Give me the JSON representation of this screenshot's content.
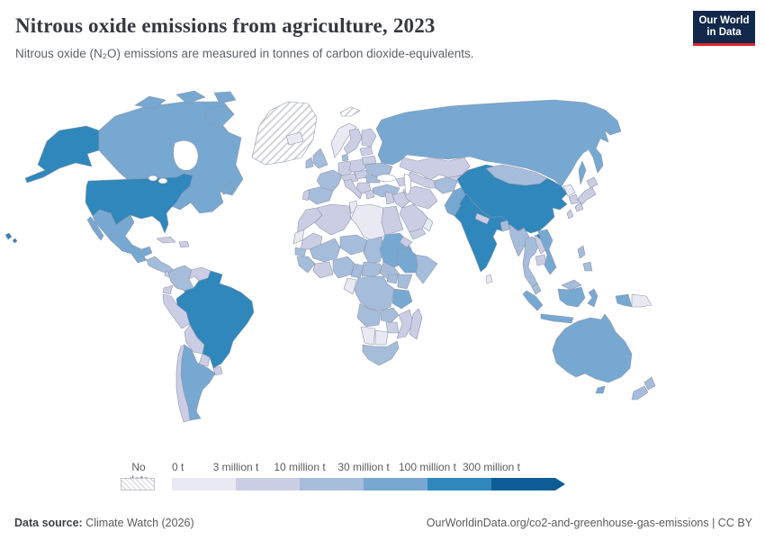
{
  "header": {
    "title": "Nitrous oxide emissions from agriculture, 2023",
    "subtitle": "Nitrous oxide (N₂O) emissions are measured in tonnes of carbon dioxide-equivalents.",
    "logo_line1": "Our World",
    "logo_line2": "in Data",
    "logo_bg": "#12294b",
    "logo_accent": "#e5252d"
  },
  "legend": {
    "no_data_label": "No data",
    "tick_labels": [
      "0 t",
      "3 million t",
      "10 million t",
      "30 million t",
      "100 million t",
      "300 million t"
    ],
    "colors": [
      "#e9e9f3",
      "#cbcde4",
      "#a6bcdb",
      "#77a8d1",
      "#2f87bc",
      "#0d5c95"
    ],
    "hatch_line_color": "#cfcfd8",
    "swatch_border": "#c2c2cc"
  },
  "map": {
    "ocean": "#ffffff",
    "border_color": "#8d97ab",
    "no_data": [
      "greenland",
      "svalbard"
    ]
  },
  "footer": {
    "source_label": "Data source:",
    "source_text": "Climate Watch (2026)",
    "right_text": "OurWorldinData.org/co2-and-greenhouse-gas-emissions | CC BY"
  },
  "chart_data": {
    "type": "choropleth_map",
    "title": "Nitrous oxide emissions from agriculture, 2023",
    "unit": "tonnes of carbon dioxide-equivalents",
    "year": "2023",
    "legend_thresholds": [
      "0 t",
      "3 million t",
      "10 million t",
      "30 million t",
      "100 million t",
      "300 million t"
    ],
    "bin_ranges": [
      "0–3 million t",
      "3–10 million t",
      "10–30 million t",
      "30–100 million t",
      "100–300 million t",
      "over 300 million t"
    ],
    "no_data_regions": [
      "Greenland",
      "Svalbard"
    ],
    "countries": {
      "usa": {
        "name": "United States",
        "bin": 5
      },
      "canada": {
        "name": "Canada",
        "bin": 4
      },
      "mexico": {
        "name": "Mexico",
        "bin": 4
      },
      "central_america": {
        "name": "Guatemala/Honduras/Nicaragua",
        "bin": 3
      },
      "panama_cr": {
        "name": "Costa Rica/Panama",
        "bin": 2
      },
      "cuba": {
        "name": "Cuba",
        "bin": 2
      },
      "hispaniola": {
        "name": "Haiti/Dominican Republic",
        "bin": 2
      },
      "iceland": {
        "name": "Iceland",
        "bin": 1
      },
      "colombia": {
        "name": "Colombia",
        "bin": 3
      },
      "venezuela": {
        "name": "Venezuela",
        "bin": 2
      },
      "guyanas": {
        "name": "Guyana/Suriname",
        "bin": 1
      },
      "ecuador": {
        "name": "Ecuador",
        "bin": 2
      },
      "peru": {
        "name": "Peru",
        "bin": 2
      },
      "brazil": {
        "name": "Brazil",
        "bin": 5
      },
      "bolivia": {
        "name": "Bolivia",
        "bin": 2
      },
      "paraguay": {
        "name": "Paraguay",
        "bin": 2
      },
      "uruguay": {
        "name": "Uruguay",
        "bin": 2
      },
      "argentina": {
        "name": "Argentina",
        "bin": 4
      },
      "chile": {
        "name": "Chile",
        "bin": 2
      },
      "norway": {
        "name": "Norway",
        "bin": 1
      },
      "sweden": {
        "name": "Sweden",
        "bin": 2
      },
      "finland": {
        "name": "Finland",
        "bin": 2
      },
      "denmark": {
        "name": "Denmark",
        "bin": 3
      },
      "uk": {
        "name": "United Kingdom",
        "bin": 3
      },
      "ireland": {
        "name": "Ireland",
        "bin": 3
      },
      "france": {
        "name": "France",
        "bin": 3
      },
      "spain": {
        "name": "Spain",
        "bin": 3
      },
      "portugal": {
        "name": "Portugal",
        "bin": 2
      },
      "germany": {
        "name": "Germany",
        "bin": 2
      },
      "alpine": {
        "name": "Switzerland/Austria",
        "bin": 2
      },
      "italy": {
        "name": "Italy",
        "bin": 2
      },
      "poland": {
        "name": "Poland",
        "bin": 2
      },
      "czech_hungary": {
        "name": "Czechia/Slovakia/Hungary",
        "bin": 2
      },
      "balkans": {
        "name": "Balkans",
        "bin": 2
      },
      "romania": {
        "name": "Romania",
        "bin": 3
      },
      "greece": {
        "name": "Greece",
        "bin": 2
      },
      "baltics": {
        "name": "Baltic states",
        "bin": 2
      },
      "belarus": {
        "name": "Belarus",
        "bin": 2
      },
      "ukraine": {
        "name": "Ukraine",
        "bin": 3
      },
      "russia": {
        "name": "Russia",
        "bin": 4
      },
      "turkey": {
        "name": "Turkey",
        "bin": 3
      },
      "caucasus": {
        "name": "Caucasus",
        "bin": 2
      },
      "levant": {
        "name": "Syria/Levant",
        "bin": 2
      },
      "iraq": {
        "name": "Iraq",
        "bin": 2
      },
      "iran": {
        "name": "Iran",
        "bin": 2
      },
      "saudi": {
        "name": "Saudi Arabia",
        "bin": 2
      },
      "yemen": {
        "name": "Yemen",
        "bin": 2
      },
      "oman": {
        "name": "Oman",
        "bin": 1
      },
      "kazakhstan": {
        "name": "Kazakhstan",
        "bin": 2
      },
      "uzbek_turkmen": {
        "name": "Uzbekistan/Turkmenistan",
        "bin": 2
      },
      "kyrgyz_tajik": {
        "name": "Kyrgyzstan/Tajikistan",
        "bin": 2
      },
      "afghanistan": {
        "name": "Afghanistan",
        "bin": 3
      },
      "pakistan": {
        "name": "Pakistan",
        "bin": 4
      },
      "india": {
        "name": "India",
        "bin": 5
      },
      "nepal": {
        "name": "Nepal",
        "bin": 2
      },
      "bangladesh": {
        "name": "Bangladesh",
        "bin": 3
      },
      "srilanka": {
        "name": "Sri Lanka",
        "bin": 1
      },
      "myanmar": {
        "name": "Myanmar",
        "bin": 3
      },
      "thailand": {
        "name": "Thailand",
        "bin": 3
      },
      "laos": {
        "name": "Laos",
        "bin": 2
      },
      "cambodia": {
        "name": "Cambodia",
        "bin": 2
      },
      "vietnam": {
        "name": "Vietnam",
        "bin": 4
      },
      "malaysia": {
        "name": "Malaysia",
        "bin": 3
      },
      "indonesia": {
        "name": "Indonesia",
        "bin": 4
      },
      "png": {
        "name": "Papua New Guinea",
        "bin": 1
      },
      "philippines": {
        "name": "Philippines",
        "bin": 3
      },
      "china": {
        "name": "China",
        "bin": 5
      },
      "mongolia": {
        "name": "Mongolia",
        "bin": 3
      },
      "nkorea": {
        "name": "North Korea",
        "bin": 1
      },
      "skorea": {
        "name": "South Korea",
        "bin": 2
      },
      "japan": {
        "name": "Japan",
        "bin": 2
      },
      "taiwan": {
        "name": "Taiwan",
        "bin": 2
      },
      "morocco": {
        "name": "Morocco",
        "bin": 2
      },
      "wsahara": {
        "name": "Western Sahara",
        "bin": 1
      },
      "algeria": {
        "name": "Algeria",
        "bin": 2
      },
      "tunisia": {
        "name": "Tunisia",
        "bin": 1
      },
      "libya": {
        "name": "Libya",
        "bin": 1
      },
      "egypt": {
        "name": "Egypt",
        "bin": 2
      },
      "mauritania": {
        "name": "Mauritania",
        "bin": 2
      },
      "senegal": {
        "name": "Senegal",
        "bin": 3
      },
      "mali": {
        "name": "Mali",
        "bin": 3
      },
      "guinea": {
        "name": "Guinea region",
        "bin": 3
      },
      "ivory_ghana": {
        "name": "Côte d'Ivoire/Ghana",
        "bin": 2
      },
      "nigeria": {
        "name": "Nigeria",
        "bin": 3
      },
      "niger": {
        "name": "Niger",
        "bin": 3
      },
      "chad": {
        "name": "Chad",
        "bin": 3
      },
      "sudan": {
        "name": "Sudan",
        "bin": 4
      },
      "eritrea": {
        "name": "Eritrea",
        "bin": 2
      },
      "ethiopia": {
        "name": "Ethiopia",
        "bin": 4
      },
      "somalia": {
        "name": "Somalia",
        "bin": 3
      },
      "kenya": {
        "name": "Kenya",
        "bin": 3
      },
      "uganda": {
        "name": "Uganda",
        "bin": 3
      },
      "cameroon": {
        "name": "Cameroon",
        "bin": 3
      },
      "car": {
        "name": "Central African Republic",
        "bin": 3
      },
      "ssudan": {
        "name": "South Sudan",
        "bin": 3
      },
      "congo_gabon": {
        "name": "Gabon/Congo",
        "bin": 1
      },
      "drc": {
        "name": "Democratic Republic of Congo",
        "bin": 3
      },
      "angola": {
        "name": "Angola",
        "bin": 3
      },
      "zambia": {
        "name": "Zambia",
        "bin": 3
      },
      "tanzania": {
        "name": "Tanzania",
        "bin": 4
      },
      "mozambique": {
        "name": "Mozambique",
        "bin": 2
      },
      "zimbabwe": {
        "name": "Zimbabwe",
        "bin": 2
      },
      "namibia": {
        "name": "Namibia",
        "bin": 1
      },
      "botswana": {
        "name": "Botswana",
        "bin": 1
      },
      "southafrica": {
        "name": "South Africa",
        "bin": 3
      },
      "madagascar": {
        "name": "Madagascar",
        "bin": 2
      },
      "australia": {
        "name": "Australia",
        "bin": 4
      },
      "nz": {
        "name": "New Zealand",
        "bin": 3
      }
    }
  }
}
